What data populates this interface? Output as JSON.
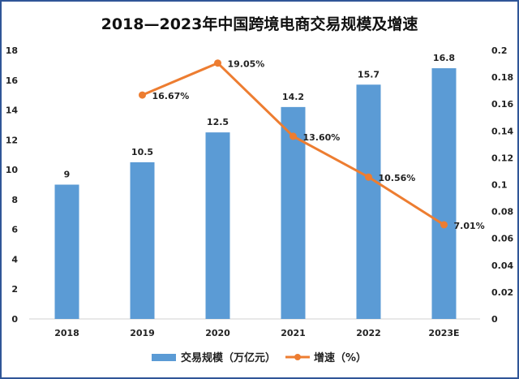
{
  "chart_data": {
    "type": "bar+line",
    "title": "2018—2023年中国跨境电商交易规模及增速",
    "categories": [
      "2018",
      "2019",
      "2020",
      "2021",
      "2022",
      "2023E"
    ],
    "series": [
      {
        "name": "交易规模（万亿元）",
        "type": "bar",
        "axis": "left",
        "values": [
          9,
          10.5,
          12.5,
          14.2,
          15.7,
          16.8
        ],
        "labels": [
          "9",
          "10.5",
          "12.5",
          "14.2",
          "15.7",
          "16.8"
        ],
        "color": "#5b9bd5"
      },
      {
        "name": "增速（%）",
        "type": "line",
        "axis": "right",
        "values": [
          null,
          0.1667,
          0.1905,
          0.136,
          0.1056,
          0.0701
        ],
        "labels": [
          "",
          "16.67%",
          "19.05%",
          "13.60%",
          "10.56%",
          "7.01%"
        ],
        "color": "#ed7d31"
      }
    ],
    "left_axis": {
      "range": [
        0,
        18
      ],
      "ticks": [
        "0",
        "2",
        "4",
        "6",
        "8",
        "10",
        "12",
        "14",
        "16",
        "18"
      ]
    },
    "right_axis": {
      "range": [
        0,
        0.2
      ],
      "ticks": [
        "0",
        "0.02",
        "0.04",
        "0.06",
        "0.08",
        "0.1",
        "0.12",
        "0.14",
        "0.16",
        "0.18",
        "0.2"
      ]
    },
    "grid": false,
    "legend": "bottom",
    "border_color": "#2f5597"
  }
}
